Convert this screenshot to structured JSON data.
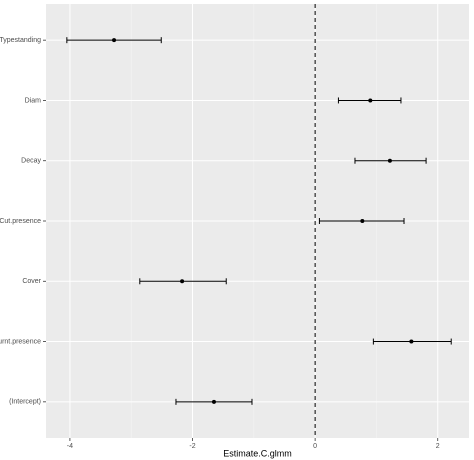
{
  "chart_data": {
    "type": "errorbar",
    "x_label": "Estimate.C.glmm",
    "categories": [
      "Typestanding",
      "Diam",
      "Decay",
      "Cut.presence",
      "Cover",
      "Burnt.presence",
      "(Intercept)"
    ],
    "values": [
      -3.28,
      0.9,
      1.22,
      0.77,
      -2.17,
      1.57,
      -1.65
    ],
    "lower": [
      -4.05,
      0.38,
      0.65,
      0.07,
      -2.86,
      0.95,
      -2.27
    ],
    "upper": [
      -2.51,
      1.4,
      1.81,
      1.45,
      -1.45,
      2.22,
      -1.03
    ],
    "color": "#000000",
    "xlim": [
      -4.39,
      2.51
    ],
    "xticks": [
      -4,
      -2,
      0,
      2
    ],
    "refline": 0,
    "grid": true
  }
}
